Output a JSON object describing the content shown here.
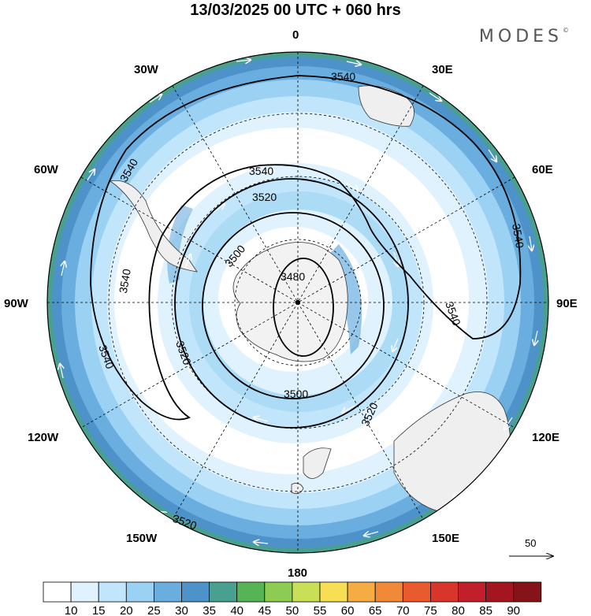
{
  "title": "13/03/2025  00 UTC  + 060 hrs",
  "brand": "MODES",
  "brand_mark": "©",
  "longitude_labels": {
    "top": "0",
    "top_right": "30E",
    "right_upper": "60E",
    "right": "90E",
    "right_lower": "120E",
    "bottom_right": "150E",
    "bottom": "180",
    "bottom_left": "150W",
    "left_lower": "120W",
    "left": "90W",
    "left_upper": "60W",
    "top_left": "30W"
  },
  "contour_labels": [
    "3540",
    "3540",
    "3540",
    "3540",
    "3540",
    "3540",
    "3540",
    "3520",
    "3520",
    "3520",
    "3520",
    "3500",
    "3500",
    "3480"
  ],
  "reference_vector_label": "50",
  "colorbar": {
    "labels": [
      "10",
      "15",
      "20",
      "25",
      "30",
      "35",
      "40",
      "45",
      "50",
      "55",
      "60",
      "65",
      "70",
      "75",
      "80",
      "85",
      "90"
    ],
    "colors": [
      "#ffffff",
      "#dff2fd",
      "#c1e6fb",
      "#9bd1f2",
      "#6aaee0",
      "#4d93c9",
      "#4aa08e",
      "#56b356",
      "#8ccc52",
      "#c8df57",
      "#f7df55",
      "#f5ac44",
      "#f08a37",
      "#e95a2e",
      "#d9362b",
      "#c11f2a",
      "#a3151f",
      "#861318"
    ]
  },
  "colors": {
    "land": "#efefef",
    "ice_sheet": "#f2f2f2",
    "contour": "#000000",
    "grid": "#000000"
  }
}
